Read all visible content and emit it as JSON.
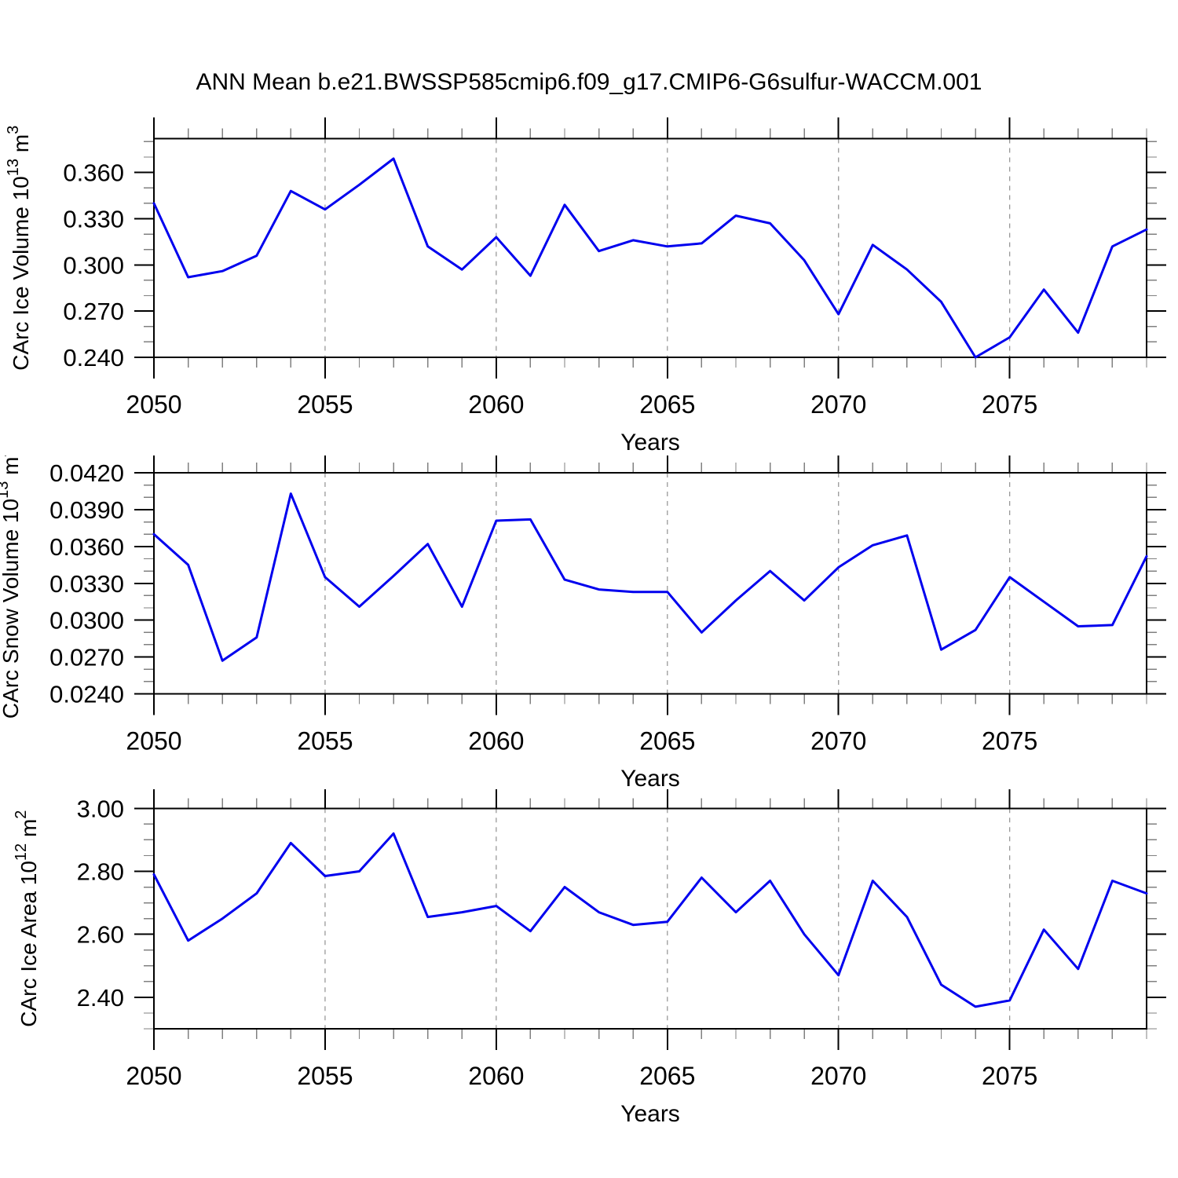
{
  "title": "ANN Mean b.e21.BWSSP585cmip6.f09_g17.CMIP6-G6sulfur-WACCM.001",
  "line_color": "#0000ee",
  "grid_color": "#999999",
  "chart_data": [
    {
      "type": "line",
      "ylabel": "CArc Ice Volume 10^13 m^3",
      "title_parts": {
        "main": "CArc Ice Volume 10",
        "sup1": "13",
        "mid": " m",
        "sup2": "3"
      },
      "xlabel": "Years",
      "x": [
        2050,
        2051,
        2052,
        2053,
        2054,
        2055,
        2056,
        2057,
        2058,
        2059,
        2060,
        2061,
        2062,
        2063,
        2064,
        2065,
        2066,
        2067,
        2068,
        2069,
        2070,
        2071,
        2072,
        2073,
        2074,
        2075,
        2076,
        2077,
        2078,
        2079
      ],
      "values": [
        0.34,
        0.292,
        0.296,
        0.306,
        0.348,
        0.336,
        0.352,
        0.369,
        0.312,
        0.297,
        0.318,
        0.293,
        0.339,
        0.309,
        0.316,
        0.312,
        0.314,
        0.332,
        0.327,
        0.303,
        0.268,
        0.313,
        0.297,
        0.276,
        0.24,
        0.253,
        0.284,
        0.256,
        0.312,
        0.323
      ],
      "xlim": [
        2050,
        2079
      ],
      "ylim": [
        0.24,
        0.382
      ],
      "xticks": [
        2050,
        2055,
        2060,
        2065,
        2070,
        2075
      ],
      "xtick_labels": [
        "2050",
        "2055",
        "2060",
        "2065",
        "2070",
        "2075"
      ],
      "grid_x": [
        2055,
        2060,
        2065,
        2070,
        2075
      ],
      "yticks": [
        0.24,
        0.27,
        0.3,
        0.33,
        0.36
      ],
      "ytick_labels": [
        "0.240",
        "0.270",
        "0.300",
        "0.330",
        "0.360"
      ],
      "y_minor": 0.01,
      "grid": "vertical-dashed",
      "legend": "none"
    },
    {
      "type": "line",
      "ylabel": "CArc Snow Volume 10^13 m^3",
      "title_parts": {
        "main": "CArc Snow Volume 10",
        "sup1": "13",
        "mid": " m",
        "sup2": "3"
      },
      "xlabel": "Years",
      "x": [
        2050,
        2051,
        2052,
        2053,
        2054,
        2055,
        2056,
        2057,
        2058,
        2059,
        2060,
        2061,
        2062,
        2063,
        2064,
        2065,
        2066,
        2067,
        2068,
        2069,
        2070,
        2071,
        2072,
        2073,
        2074,
        2075,
        2076,
        2077,
        2078,
        2079
      ],
      "values": [
        0.037,
        0.0345,
        0.0267,
        0.0286,
        0.0403,
        0.0335,
        0.0311,
        0.0336,
        0.0362,
        0.0311,
        0.0381,
        0.0382,
        0.0333,
        0.0325,
        0.0323,
        0.0323,
        0.029,
        0.0316,
        0.034,
        0.0316,
        0.0343,
        0.0361,
        0.0369,
        0.0276,
        0.0292,
        0.0335,
        0.0315,
        0.0295,
        0.0296,
        0.0352
      ],
      "xlim": [
        2050,
        2079
      ],
      "ylim": [
        0.024,
        0.042
      ],
      "xticks": [
        2050,
        2055,
        2060,
        2065,
        2070,
        2075
      ],
      "xtick_labels": [
        "2050",
        "2055",
        "2060",
        "2065",
        "2070",
        "2075"
      ],
      "grid_x": [
        2055,
        2060,
        2065,
        2070,
        2075
      ],
      "yticks": [
        0.024,
        0.027,
        0.03,
        0.033,
        0.036,
        0.039,
        0.042
      ],
      "ytick_labels": [
        "0.0240",
        "0.0270",
        "0.0300",
        "0.0330",
        "0.0360",
        "0.0390",
        "0.0420"
      ],
      "y_minor": 0.001,
      "grid": "vertical-dashed",
      "legend": "none"
    },
    {
      "type": "line",
      "ylabel": "CArc Ice Area 10^12 m^2",
      "title_parts": {
        "main": "CArc Ice Area 10",
        "sup1": "12",
        "mid": " m",
        "sup2": "2"
      },
      "xlabel": "Years",
      "x": [
        2050,
        2051,
        2052,
        2053,
        2054,
        2055,
        2056,
        2057,
        2058,
        2059,
        2060,
        2061,
        2062,
        2063,
        2064,
        2065,
        2066,
        2067,
        2068,
        2069,
        2070,
        2071,
        2072,
        2073,
        2074,
        2075,
        2076,
        2077,
        2078,
        2079
      ],
      "values": [
        2.79,
        2.58,
        2.65,
        2.73,
        2.89,
        2.785,
        2.8,
        2.92,
        2.655,
        2.67,
        2.69,
        2.61,
        2.75,
        2.67,
        2.63,
        2.64,
        2.78,
        2.67,
        2.77,
        2.6,
        2.47,
        2.77,
        2.655,
        2.44,
        2.37,
        2.39,
        2.615,
        2.49,
        2.77,
        2.73
      ],
      "xlim": [
        2050,
        2079
      ],
      "ylim": [
        2.3,
        3.0
      ],
      "xticks": [
        2050,
        2055,
        2060,
        2065,
        2070,
        2075
      ],
      "xtick_labels": [
        "2050",
        "2055",
        "2060",
        "2065",
        "2070",
        "2075"
      ],
      "grid_x": [
        2055,
        2060,
        2065,
        2070,
        2075
      ],
      "yticks": [
        2.4,
        2.6,
        2.8,
        3.0
      ],
      "ytick_labels": [
        "2.40",
        "2.60",
        "2.80",
        "3.00"
      ],
      "y_minor": 0.05,
      "grid": "vertical-dashed",
      "legend": "none"
    }
  ]
}
